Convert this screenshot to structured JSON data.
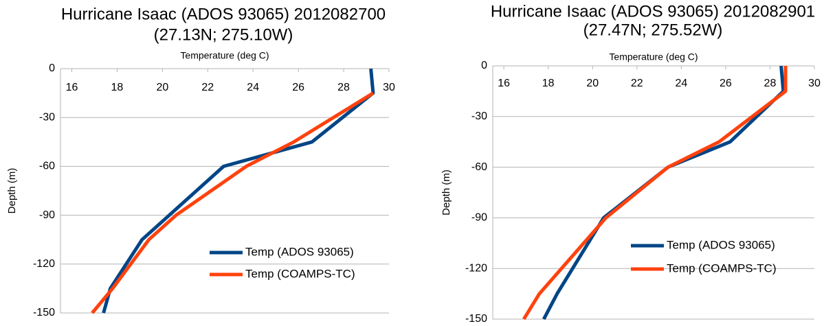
{
  "chart_data": [
    {
      "type": "line",
      "title": "Hurricane Isaac (ADOS 93065) 2012082700",
      "subtitle": "(27.13N; 275.10W)",
      "x_label": "Temperature (deg C)",
      "y_label": "Depth (m)",
      "xlim": [
        15.5,
        30
      ],
      "xticks": [
        16,
        18,
        20,
        22,
        24,
        26,
        28,
        30
      ],
      "ylim": [
        -150,
        0
      ],
      "yticks": [
        0,
        -30,
        -60,
        -90,
        -120,
        -150
      ],
      "grid": true,
      "legend": "right",
      "series": [
        {
          "name": "Temp (ADOS 93065)",
          "color": "#004586",
          "x": [
            29.2,
            29.3,
            26.6,
            22.7,
            19.1,
            17.7,
            17.4
          ],
          "values": [
            0,
            -15,
            -45,
            -60,
            -105,
            -135,
            -150
          ]
        },
        {
          "name": "Temp (COAMPS-TC)",
          "color": "#ff420e",
          "x": [
            29.3,
            25.8,
            23.7,
            20.6,
            19.4,
            17.8,
            16.9
          ],
          "values": [
            -15,
            -45,
            -60,
            -90,
            -105,
            -135,
            -150
          ]
        }
      ]
    },
    {
      "type": "line",
      "title": "Hurricane Isaac (ADOS 93065) 2012082901",
      "subtitle": "(27.47N; 275.52W)",
      "x_label": "Temperature (deg C)",
      "y_label": "Depth (m)",
      "xlim": [
        15.5,
        30
      ],
      "xticks": [
        16,
        18,
        20,
        22,
        24,
        26,
        28,
        30
      ],
      "ylim": [
        -150,
        0
      ],
      "yticks": [
        0,
        -30,
        -60,
        -90,
        -120,
        -150
      ],
      "grid": true,
      "legend": "right",
      "series": [
        {
          "name": "Temp (ADOS 93065)",
          "color": "#004586",
          "x": [
            28.5,
            28.6,
            26.2,
            23.4,
            20.5,
            18.4,
            17.8
          ],
          "values": [
            0,
            -15,
            -45,
            -60,
            -90,
            -135,
            -150
          ]
        },
        {
          "name": "Temp (COAMPS-TC)",
          "color": "#ff420e",
          "x": [
            28.7,
            28.7,
            25.7,
            23.4,
            20.6,
            17.6,
            16.9
          ],
          "values": [
            0,
            -15,
            -45,
            -60,
            -90,
            -135,
            -150
          ]
        }
      ]
    }
  ]
}
